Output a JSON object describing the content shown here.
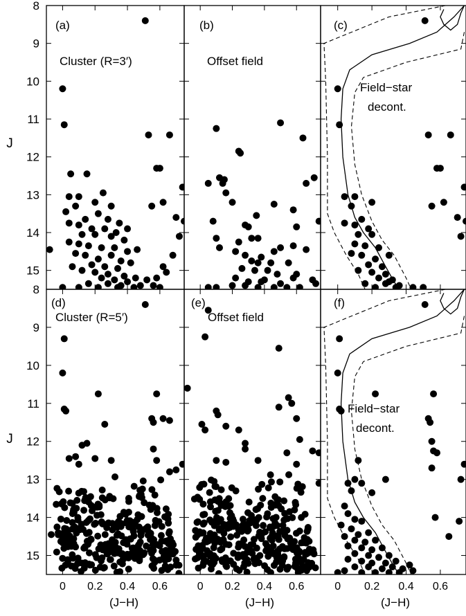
{
  "figure": {
    "ylabel": "J",
    "xlabel": "(J−H)",
    "x_ticks": [
      "0",
      "0.2",
      "0.4",
      "0.6"
    ],
    "y_ticks_top": [
      "8",
      "9",
      "10",
      "11",
      "12",
      "13",
      "14",
      "15"
    ],
    "y_ticks_bottom": [
      "8",
      "9",
      "10",
      "11",
      "12",
      "13",
      "14",
      "15"
    ],
    "colors": {
      "points": "#000000",
      "axes": "#000000",
      "background": "#ffffff"
    }
  },
  "chart_data": [
    {
      "type": "scatter",
      "panel": "a",
      "label": "(a)",
      "annotation": "Cluster (R=3′)",
      "xlabel": "",
      "ylabel": "J",
      "xlim": [
        -0.1,
        0.75
      ],
      "ylim": [
        15.5,
        8
      ],
      "points": [
        [
          0.51,
          8.4
        ],
        [
          0.0,
          10.2
        ],
        [
          0.01,
          11.15
        ],
        [
          0.05,
          12.45
        ],
        [
          0.15,
          12.45
        ],
        [
          0.53,
          11.42
        ],
        [
          0.55,
          13.3
        ],
        [
          0.58,
          12.3
        ],
        [
          0.6,
          12.3
        ],
        [
          0.66,
          11.42
        ],
        [
          0.74,
          12.8
        ],
        [
          0.62,
          13.2
        ],
        [
          0.7,
          13.6
        ],
        [
          0.25,
          12.95
        ],
        [
          0.04,
          13.05
        ],
        [
          0.1,
          13.05
        ],
        [
          0.2,
          13.2
        ],
        [
          0.3,
          13.3
        ],
        [
          0.02,
          13.45
        ],
        [
          0.08,
          13.3
        ],
        [
          0.14,
          13.65
        ],
        [
          0.22,
          13.5
        ],
        [
          0.28,
          13.65
        ],
        [
          0.35,
          13.75
        ],
        [
          0.04,
          13.75
        ],
        [
          0.1,
          13.8
        ],
        [
          0.18,
          13.9
        ],
        [
          0.26,
          13.9
        ],
        [
          0.33,
          14.0
        ],
        [
          0.4,
          13.9
        ],
        [
          0.12,
          14.05
        ],
        [
          0.2,
          14.05
        ],
        [
          0.3,
          14.1
        ],
        [
          0.38,
          14.2
        ],
        [
          0.04,
          14.25
        ],
        [
          0.1,
          14.3
        ],
        [
          0.16,
          14.35
        ],
        [
          0.24,
          14.4
        ],
        [
          0.32,
          14.4
        ],
        [
          0.4,
          14.5
        ],
        [
          0.46,
          14.45
        ],
        [
          -0.08,
          14.45
        ],
        [
          0.08,
          14.55
        ],
        [
          0.14,
          14.6
        ],
        [
          0.22,
          14.7
        ],
        [
          0.3,
          14.6
        ],
        [
          0.36,
          14.75
        ],
        [
          0.42,
          14.8
        ],
        [
          0.18,
          14.85
        ],
        [
          0.26,
          14.9
        ],
        [
          0.34,
          14.95
        ],
        [
          0.06,
          14.9
        ],
        [
          0.12,
          15.0
        ],
        [
          0.2,
          15.05
        ],
        [
          0.28,
          15.1
        ],
        [
          0.38,
          15.15
        ],
        [
          0.45,
          15.2
        ],
        [
          0.52,
          15.25
        ],
        [
          0.24,
          15.2
        ],
        [
          0.32,
          15.25
        ],
        [
          0.4,
          15.3
        ],
        [
          0.16,
          15.35
        ],
        [
          0.28,
          15.35
        ],
        [
          0.36,
          15.4
        ],
        [
          0.48,
          15.4
        ],
        [
          0.56,
          15.4
        ],
        [
          0.22,
          15.45
        ],
        [
          0.34,
          15.45
        ],
        [
          0.44,
          15.45
        ],
        [
          0.1,
          15.45
        ],
        [
          0.0,
          15.45
        ],
        [
          0.6,
          15.45
        ],
        [
          0.62,
          14.9
        ],
        [
          0.64,
          15.05
        ],
        [
          0.68,
          14.6
        ],
        [
          0.72,
          14.1
        ],
        [
          0.75,
          13.7
        ],
        [
          0.58,
          15.2
        ]
      ]
    },
    {
      "type": "scatter",
      "panel": "b",
      "label": "(b)",
      "annotation": "Offset field",
      "xlabel": "",
      "ylabel": "",
      "xlim": [
        -0.1,
        0.75
      ],
      "ylim": [
        15.5,
        8
      ],
      "points": [
        [
          0.1,
          11.25
        ],
        [
          0.5,
          11.1
        ],
        [
          0.24,
          11.85
        ],
        [
          0.25,
          11.9
        ],
        [
          0.64,
          11.5
        ],
        [
          0.05,
          12.7
        ],
        [
          0.12,
          12.55
        ],
        [
          0.15,
          12.6
        ],
        [
          0.14,
          12.7
        ],
        [
          0.16,
          12.95
        ],
        [
          0.66,
          12.7
        ],
        [
          0.71,
          12.55
        ],
        [
          0.2,
          13.2
        ],
        [
          0.46,
          13.25
        ],
        [
          0.58,
          13.4
        ],
        [
          0.35,
          13.55
        ],
        [
          0.08,
          13.7
        ],
        [
          0.28,
          13.8
        ],
        [
          0.3,
          13.85
        ],
        [
          0.6,
          13.85
        ],
        [
          0.74,
          13.7
        ],
        [
          0.1,
          14.15
        ],
        [
          0.24,
          14.25
        ],
        [
          0.32,
          14.15
        ],
        [
          0.36,
          14.15
        ],
        [
          0.12,
          14.4
        ],
        [
          0.22,
          14.5
        ],
        [
          0.28,
          14.6
        ],
        [
          0.38,
          14.65
        ],
        [
          0.46,
          14.5
        ],
        [
          0.5,
          14.4
        ],
        [
          0.58,
          14.35
        ],
        [
          0.66,
          14.45
        ],
        [
          0.32,
          14.75
        ],
        [
          0.36,
          14.8
        ],
        [
          0.44,
          14.8
        ],
        [
          0.55,
          14.8
        ],
        [
          0.26,
          14.95
        ],
        [
          0.34,
          15.0
        ],
        [
          0.42,
          15.0
        ],
        [
          0.48,
          15.1
        ],
        [
          0.58,
          15.2
        ],
        [
          0.7,
          15.25
        ],
        [
          0.22,
          15.2
        ],
        [
          0.3,
          15.3
        ],
        [
          0.38,
          15.3
        ],
        [
          0.2,
          15.4
        ],
        [
          0.28,
          15.4
        ],
        [
          0.36,
          15.45
        ],
        [
          0.46,
          15.45
        ],
        [
          0.54,
          15.45
        ],
        [
          0.62,
          15.45
        ],
        [
          0.72,
          15.35
        ],
        [
          0.05,
          15.45
        ],
        [
          0.1,
          15.45
        ],
        [
          0.4,
          15.25
        ],
        [
          0.5,
          15.35
        ],
        [
          0.6,
          15.1
        ]
      ]
    },
    {
      "type": "scatter",
      "panel": "c",
      "label": "(c)",
      "annotation": "Field−star decont.",
      "xlabel": "",
      "ylabel": "",
      "xlim": [
        -0.1,
        0.75
      ],
      "ylim": [
        15.5,
        8
      ],
      "points": [
        [
          0.51,
          8.4
        ],
        [
          0.0,
          10.2
        ],
        [
          0.01,
          11.15
        ],
        [
          0.53,
          11.42
        ],
        [
          0.55,
          13.3
        ],
        [
          0.58,
          12.3
        ],
        [
          0.6,
          12.3
        ],
        [
          0.66,
          11.42
        ],
        [
          0.74,
          12.8
        ],
        [
          0.62,
          13.2
        ],
        [
          0.7,
          13.6
        ],
        [
          0.04,
          13.05
        ],
        [
          0.1,
          13.05
        ],
        [
          0.2,
          13.2
        ],
        [
          0.08,
          13.3
        ],
        [
          0.14,
          13.65
        ],
        [
          0.04,
          13.75
        ],
        [
          0.1,
          13.8
        ],
        [
          0.18,
          13.9
        ],
        [
          0.12,
          14.05
        ],
        [
          0.2,
          14.05
        ],
        [
          0.1,
          14.3
        ],
        [
          0.16,
          14.35
        ],
        [
          0.24,
          14.4
        ],
        [
          0.08,
          14.55
        ],
        [
          0.14,
          14.6
        ],
        [
          0.22,
          14.7
        ],
        [
          0.3,
          14.6
        ],
        [
          0.18,
          14.85
        ],
        [
          0.26,
          14.9
        ],
        [
          0.12,
          15.0
        ],
        [
          0.2,
          15.05
        ],
        [
          0.28,
          15.1
        ],
        [
          0.24,
          15.2
        ],
        [
          0.32,
          15.25
        ],
        [
          0.16,
          15.35
        ],
        [
          0.28,
          15.35
        ],
        [
          0.36,
          15.4
        ],
        [
          0.22,
          15.45
        ],
        [
          0.34,
          15.45
        ],
        [
          0.44,
          15.45
        ],
        [
          0.5,
          15.45
        ],
        [
          0.72,
          14.1
        ],
        [
          0.75,
          13.7
        ],
        [
          0.3,
          15.3
        ]
      ]
    },
    {
      "type": "scatter",
      "panel": "d",
      "label": "(d)",
      "annotation": "Cluster (R=5′)",
      "xlabel": "(J−H)",
      "ylabel": "J",
      "xlim": [
        -0.1,
        0.75
      ],
      "ylim": [
        15.5,
        8
      ],
      "points": [
        [
          0.51,
          8.4
        ],
        [
          0.01,
          9.3
        ],
        [
          0.0,
          10.2
        ],
        [
          0.01,
          11.15
        ],
        [
          0.02,
          11.2
        ],
        [
          0.22,
          10.75
        ],
        [
          0.58,
          10.75
        ],
        [
          0.26,
          11.55
        ],
        [
          0.55,
          11.4
        ],
        [
          0.56,
          11.5
        ],
        [
          0.62,
          11.4
        ],
        [
          0.66,
          11.45
        ],
        [
          0.15,
          12.05
        ],
        [
          0.12,
          12.1
        ],
        [
          0.04,
          12.45
        ],
        [
          0.08,
          12.4
        ],
        [
          0.1,
          12.6
        ],
        [
          0.2,
          12.45
        ],
        [
          0.3,
          12.5
        ],
        [
          0.56,
          12.2
        ],
        [
          0.58,
          12.5
        ],
        [
          0.66,
          12.8
        ],
        [
          0.7,
          12.75
        ],
        [
          0.74,
          12.6
        ],
        [
          -0.07,
          14.45
        ]
      ],
      "fill_band": {
        "x_range": [
          0.0,
          0.7
        ],
        "y_range": [
          12.8,
          15.5
        ],
        "count": 320
      }
    },
    {
      "type": "scatter",
      "panel": "e",
      "label": "(e)",
      "annotation": "Offset field",
      "xlabel": "(J−H)",
      "ylabel": "",
      "xlim": [
        -0.1,
        0.75
      ],
      "ylim": [
        15.5,
        8
      ],
      "points": [
        [
          0.05,
          8.55
        ],
        [
          0.03,
          9.25
        ],
        [
          0.49,
          9.55
        ],
        [
          -0.08,
          10.6
        ],
        [
          0.1,
          11.2
        ],
        [
          0.11,
          11.3
        ],
        [
          0.01,
          11.55
        ],
        [
          0.03,
          11.7
        ],
        [
          0.49,
          11.1
        ],
        [
          0.55,
          10.85
        ],
        [
          0.57,
          11.0
        ],
        [
          0.6,
          11.4
        ],
        [
          0.16,
          11.6
        ],
        [
          0.24,
          11.7
        ],
        [
          0.28,
          12.05
        ],
        [
          0.28,
          12.2
        ],
        [
          0.62,
          11.95
        ],
        [
          0.7,
          12.25
        ],
        [
          0.74,
          12.3
        ],
        [
          0.1,
          12.5
        ],
        [
          0.16,
          12.55
        ],
        [
          0.36,
          12.5
        ],
        [
          0.54,
          12.3
        ],
        [
          0.6,
          12.6
        ],
        [
          0.74,
          13.1
        ]
      ],
      "fill_band": {
        "x_range": [
          0.0,
          0.75
        ],
        "y_range": [
          12.7,
          15.5
        ],
        "count": 330
      }
    },
    {
      "type": "scatter",
      "panel": "f",
      "label": "(f)",
      "annotation": "Field−star decont.",
      "xlabel": "(J−H)",
      "ylabel": "",
      "xlim": [
        -0.1,
        0.75
      ],
      "ylim": [
        15.5,
        8
      ],
      "points": [
        [
          0.51,
          8.4
        ],
        [
          0.01,
          9.3
        ],
        [
          0.0,
          10.2
        ],
        [
          0.01,
          11.15
        ],
        [
          0.02,
          11.2
        ],
        [
          0.22,
          10.75
        ],
        [
          0.56,
          10.75
        ],
        [
          0.53,
          11.4
        ],
        [
          0.54,
          11.5
        ],
        [
          0.55,
          12.0
        ],
        [
          0.56,
          12.25
        ],
        [
          0.58,
          12.3
        ],
        [
          0.55,
          12.7
        ],
        [
          0.12,
          12.5
        ],
        [
          0.1,
          13.0
        ],
        [
          0.06,
          13.1
        ],
        [
          0.08,
          13.3
        ],
        [
          0.14,
          13.1
        ],
        [
          0.2,
          13.35
        ],
        [
          0.28,
          13.0
        ],
        [
          0.72,
          13.0
        ],
        [
          0.74,
          12.6
        ],
        [
          0.57,
          14.0
        ],
        [
          0.65,
          14.5
        ],
        [
          0.71,
          14.1
        ],
        [
          0.04,
          13.7
        ],
        [
          0.06,
          13.9
        ],
        [
          0.1,
          14.05
        ],
        [
          0.14,
          14.1
        ],
        [
          0.02,
          14.2
        ],
        [
          0.08,
          14.3
        ],
        [
          0.12,
          14.45
        ],
        [
          0.18,
          14.4
        ],
        [
          0.04,
          14.5
        ],
        [
          0.1,
          14.6
        ],
        [
          0.16,
          14.65
        ],
        [
          0.22,
          14.6
        ],
        [
          0.06,
          14.75
        ],
        [
          0.14,
          14.8
        ],
        [
          0.2,
          14.85
        ],
        [
          0.26,
          14.8
        ],
        [
          0.1,
          14.95
        ],
        [
          0.18,
          15.0
        ],
        [
          0.24,
          15.05
        ],
        [
          0.3,
          15.0
        ],
        [
          0.06,
          15.1
        ],
        [
          0.14,
          15.15
        ],
        [
          0.2,
          15.2
        ],
        [
          0.28,
          15.2
        ],
        [
          0.34,
          15.15
        ],
        [
          0.1,
          15.3
        ],
        [
          0.18,
          15.3
        ],
        [
          0.26,
          15.35
        ],
        [
          0.32,
          15.3
        ],
        [
          0.38,
          15.35
        ],
        [
          0.42,
          15.25
        ],
        [
          0.04,
          15.4
        ],
        [
          0.14,
          15.45
        ],
        [
          0.22,
          15.45
        ],
        [
          0.3,
          15.45
        ],
        [
          0.36,
          15.45
        ],
        [
          0.44,
          15.4
        ],
        [
          0.0,
          15.45
        ]
      ]
    }
  ]
}
